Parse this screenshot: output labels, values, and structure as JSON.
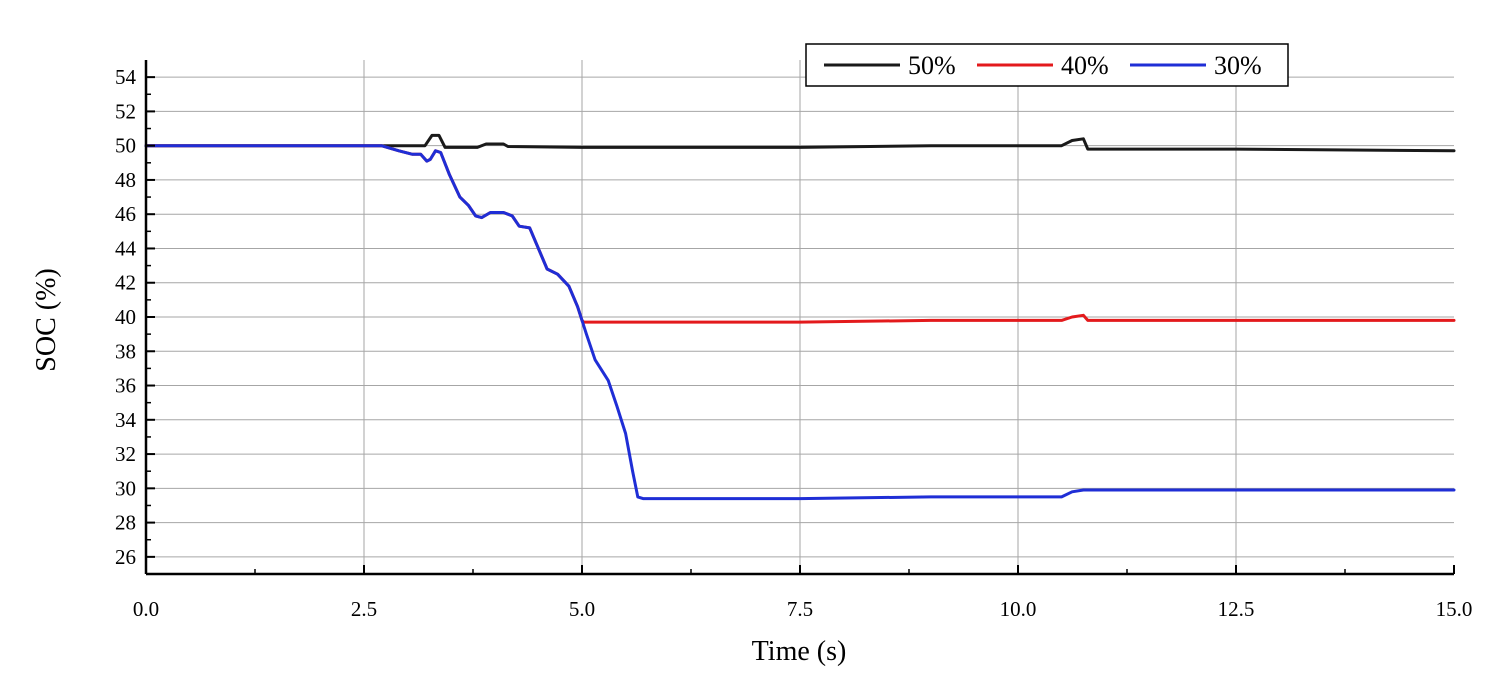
{
  "chart_data": {
    "type": "line",
    "title": "",
    "xlabel": "Time (s)",
    "ylabel": "SOC (%)",
    "xlim": [
      0,
      15
    ],
    "ylim": [
      25,
      55
    ],
    "x_ticks": [
      "0.0",
      "2.5",
      "5.0",
      "7.5",
      "10.0",
      "12.5",
      "15.0"
    ],
    "y_ticks": [
      "26",
      "28",
      "30",
      "32",
      "34",
      "36",
      "38",
      "40",
      "42",
      "44",
      "46",
      "48",
      "50",
      "52",
      "54"
    ],
    "grid": true,
    "legend_position": "top-right",
    "series": [
      {
        "name": "50%",
        "color": "#1a1a1a",
        "points": [
          [
            0,
            50
          ],
          [
            2.7,
            50
          ],
          [
            3.2,
            50
          ],
          [
            3.28,
            50.6
          ],
          [
            3.36,
            50.6
          ],
          [
            3.43,
            49.9
          ],
          [
            3.8,
            49.9
          ],
          [
            3.9,
            50.1
          ],
          [
            4.1,
            50.1
          ],
          [
            4.15,
            49.95
          ],
          [
            5.0,
            49.9
          ],
          [
            7.5,
            49.9
          ],
          [
            9.0,
            50.0
          ],
          [
            10.5,
            50.0
          ],
          [
            10.62,
            50.3
          ],
          [
            10.75,
            50.4
          ],
          [
            10.8,
            49.8
          ],
          [
            12.5,
            49.8
          ],
          [
            15,
            49.7
          ]
        ]
      },
      {
        "name": "40%",
        "color": "#e31a1c",
        "points": [
          [
            0,
            50
          ],
          [
            2.7,
            50
          ],
          [
            2.9,
            49.7
          ],
          [
            3.05,
            49.5
          ],
          [
            3.15,
            49.5
          ],
          [
            3.22,
            49.1
          ],
          [
            3.26,
            49.2
          ],
          [
            3.32,
            49.7
          ],
          [
            3.38,
            49.6
          ],
          [
            3.48,
            48.3
          ],
          [
            3.6,
            47.0
          ],
          [
            3.7,
            46.5
          ],
          [
            3.78,
            45.9
          ],
          [
            3.85,
            45.8
          ],
          [
            3.95,
            46.1
          ],
          [
            4.1,
            46.1
          ],
          [
            4.2,
            45.9
          ],
          [
            4.28,
            45.3
          ],
          [
            4.4,
            45.2
          ],
          [
            4.6,
            42.8
          ],
          [
            4.72,
            42.5
          ],
          [
            4.85,
            41.8
          ],
          [
            4.95,
            40.6
          ],
          [
            5.0,
            39.8
          ],
          [
            5.02,
            39.7
          ],
          [
            7.5,
            39.7
          ],
          [
            9.0,
            39.8
          ],
          [
            10.5,
            39.8
          ],
          [
            10.62,
            40.0
          ],
          [
            10.75,
            40.1
          ],
          [
            10.8,
            39.8
          ],
          [
            12.5,
            39.8
          ],
          [
            15,
            39.8
          ]
        ]
      },
      {
        "name": "30%",
        "color": "#1f2ed6",
        "points": [
          [
            0,
            50
          ],
          [
            2.7,
            50
          ],
          [
            2.9,
            49.7
          ],
          [
            3.05,
            49.5
          ],
          [
            3.15,
            49.5
          ],
          [
            3.22,
            49.1
          ],
          [
            3.26,
            49.2
          ],
          [
            3.32,
            49.7
          ],
          [
            3.38,
            49.6
          ],
          [
            3.48,
            48.3
          ],
          [
            3.6,
            47.0
          ],
          [
            3.7,
            46.5
          ],
          [
            3.78,
            45.9
          ],
          [
            3.85,
            45.8
          ],
          [
            3.95,
            46.1
          ],
          [
            4.1,
            46.1
          ],
          [
            4.2,
            45.9
          ],
          [
            4.28,
            45.3
          ],
          [
            4.4,
            45.2
          ],
          [
            4.6,
            42.8
          ],
          [
            4.72,
            42.5
          ],
          [
            4.85,
            41.8
          ],
          [
            4.95,
            40.6
          ],
          [
            5.05,
            39.0
          ],
          [
            5.15,
            37.5
          ],
          [
            5.3,
            36.3
          ],
          [
            5.4,
            34.8
          ],
          [
            5.5,
            33.2
          ],
          [
            5.58,
            31.0
          ],
          [
            5.64,
            29.5
          ],
          [
            5.7,
            29.4
          ],
          [
            7.5,
            29.4
          ],
          [
            9.0,
            29.5
          ],
          [
            10.5,
            29.5
          ],
          [
            10.62,
            29.8
          ],
          [
            10.75,
            29.9
          ],
          [
            12.5,
            29.9
          ],
          [
            15,
            29.9
          ]
        ]
      }
    ]
  }
}
